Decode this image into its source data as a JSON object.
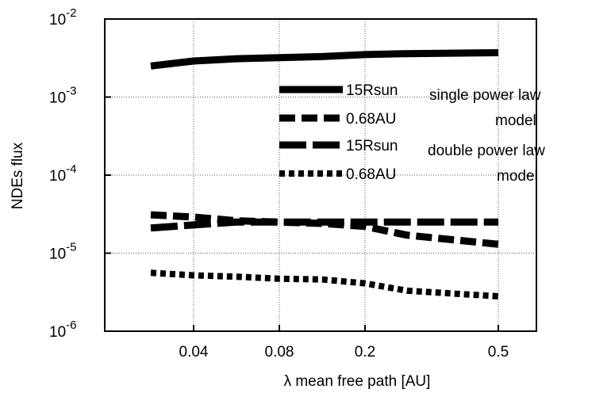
{
  "chart_data": {
    "type": "line",
    "title": "",
    "xlabel": "λ   mean free path [AU]",
    "ylabel": "NDEs flux",
    "x_ticks": [
      "0.04",
      "0.08",
      "0.2",
      "0.5"
    ],
    "y_ticks": [
      {
        "base": "10",
        "exp": "-2"
      },
      {
        "base": "10",
        "exp": "-3"
      },
      {
        "base": "10",
        "exp": "-4"
      },
      {
        "base": "10",
        "exp": "-5"
      },
      {
        "base": "10",
        "exp": "-6"
      }
    ],
    "y_scale": "log",
    "ylim": [
      1e-06,
      0.01
    ],
    "x": [
      0.02,
      0.04,
      0.06,
      0.08,
      0.1,
      0.2,
      0.3,
      0.5
    ],
    "grid": true,
    "legend": {
      "placement": "upper-right",
      "groups": [
        {
          "model": "single  power  law",
          "subtitle": "model"
        },
        {
          "model": "double power  law",
          "subtitle": "model"
        }
      ]
    },
    "series": [
      {
        "name": "15Rsun",
        "group": 0,
        "style": "solid",
        "values": [
          0.0025,
          0.0029,
          0.0031,
          0.0032,
          0.0033,
          0.0035,
          0.0036,
          0.0037
        ]
      },
      {
        "name": "0.68AU",
        "group": 0,
        "style": "dashed",
        "values": [
          3.1e-05,
          2.9e-05,
          2.6e-05,
          2.5e-05,
          2.4e-05,
          2.2e-05,
          1.7e-05,
          1.3e-05
        ]
      },
      {
        "name": "15Rsun",
        "group": 1,
        "style": "long-dashed",
        "values": [
          2.1e-05,
          2.3e-05,
          2.5e-05,
          2.5e-05,
          2.5e-05,
          2.5e-05,
          2.5e-05,
          2.5e-05
        ]
      },
      {
        "name": "0.68AU",
        "group": 1,
        "style": "dotted",
        "values": [
          5.6e-06,
          5.2e-06,
          5e-06,
          4.7e-06,
          4.6e-06,
          4.1e-06,
          3.3e-06,
          2.8e-06
        ]
      }
    ]
  }
}
